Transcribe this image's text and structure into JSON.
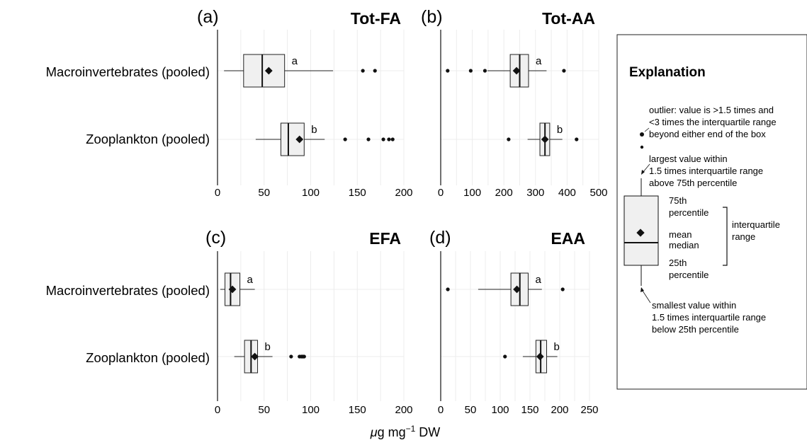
{
  "chart_data": [
    {
      "id": "a",
      "type": "box",
      "panel_label": "(a)",
      "title": "Tot-FA",
      "categories": [
        "Macroinvertebrates (pooled)",
        "Zooplankton (pooled)"
      ],
      "xlim": [
        0,
        200
      ],
      "xticks": [
        0,
        50,
        100,
        150,
        200
      ],
      "grid": true,
      "boxes": [
        {
          "q1": 28,
          "median": 48,
          "q3": 72,
          "whisker_low": 7,
          "whisker_high": 124,
          "mean": 55,
          "outliers": [
            156,
            169
          ],
          "group_letter": "a"
        },
        {
          "q1": 68,
          "median": 76,
          "q3": 93,
          "whisker_low": 41,
          "whisker_high": 115,
          "mean": 88,
          "outliers": [
            137,
            162,
            178,
            184,
            188
          ],
          "group_letter": "b"
        }
      ]
    },
    {
      "id": "b",
      "type": "box",
      "panel_label": "(b)",
      "title": "Tot-AA",
      "categories": [
        "Macroinvertebrates (pooled)",
        "Zooplankton (pooled)"
      ],
      "xlim": [
        0,
        500
      ],
      "xticks": [
        0,
        100,
        200,
        300,
        400,
        500
      ],
      "grid": true,
      "boxes": [
        {
          "q1": 220,
          "median": 250,
          "q3": 278,
          "whisker_low": 148,
          "whisker_high": 335,
          "mean": 240,
          "outliers": [
            22,
            95,
            140,
            390
          ],
          "group_letter": "a"
        },
        {
          "q1": 314,
          "median": 330,
          "q3": 345,
          "whisker_low": 275,
          "whisker_high": 385,
          "mean": 330,
          "outliers": [
            215,
            430
          ],
          "group_letter": "b"
        }
      ]
    },
    {
      "id": "c",
      "type": "box",
      "panel_label": "(c)",
      "title": "EFA",
      "categories": [
        "Macroinvertebrates (pooled)",
        "Zooplankton (pooled)"
      ],
      "xlim": [
        0,
        200
      ],
      "xticks": [
        0,
        50,
        100,
        150,
        200
      ],
      "grid": true,
      "boxes": [
        {
          "q1": 8,
          "median": 14,
          "q3": 24,
          "whisker_low": 3,
          "whisker_high": 40,
          "mean": 16,
          "outliers": [],
          "group_letter": "a"
        },
        {
          "q1": 29,
          "median": 36,
          "q3": 43,
          "whisker_low": 18,
          "whisker_high": 59,
          "mean": 40,
          "outliers": [
            79,
            88,
            90,
            91,
            92,
            93
          ],
          "group_letter": "b"
        }
      ]
    },
    {
      "id": "d",
      "type": "box",
      "panel_label": "(d)",
      "title": "EAA",
      "categories": [
        "Macroinvertebrates (pooled)",
        "Zooplankton (pooled)"
      ],
      "xlim": [
        0,
        250
      ],
      "xticks": [
        0,
        50,
        100,
        150,
        200,
        250
      ],
      "grid": true,
      "boxes": [
        {
          "q1": 118,
          "median": 133,
          "q3": 147,
          "whisker_low": 63,
          "whisker_high": 170,
          "mean": 128,
          "outliers": [
            12,
            205
          ],
          "group_letter": "a"
        },
        {
          "q1": 160,
          "median": 168,
          "q3": 178,
          "whisker_low": 138,
          "whisker_high": 196,
          "mean": 167,
          "outliers": [
            108
          ],
          "group_letter": "b"
        }
      ]
    }
  ],
  "xlabel_unit": "g mg",
  "xlabel_mu": "μ",
  "xlabel_sup": "−1",
  "xlabel_tail": " DW",
  "legend": {
    "title": "Explanation",
    "outlier": [
      "outlier: value is >1.5 times and",
      "<3 times the interquartile range",
      "beyond either end of the box"
    ],
    "upper_whisker": [
      "largest value within",
      "1.5 times interquartile range",
      "above 75th percentile"
    ],
    "p75": [
      "75th",
      "percentile"
    ],
    "mean": "mean",
    "median": "median",
    "p25": [
      "25th",
      "percentile"
    ],
    "iqr": [
      "interquartile",
      "range"
    ],
    "lower_whisker": [
      "smallest value within",
      "1.5 times interquartile range",
      "below 25th percentile"
    ]
  }
}
